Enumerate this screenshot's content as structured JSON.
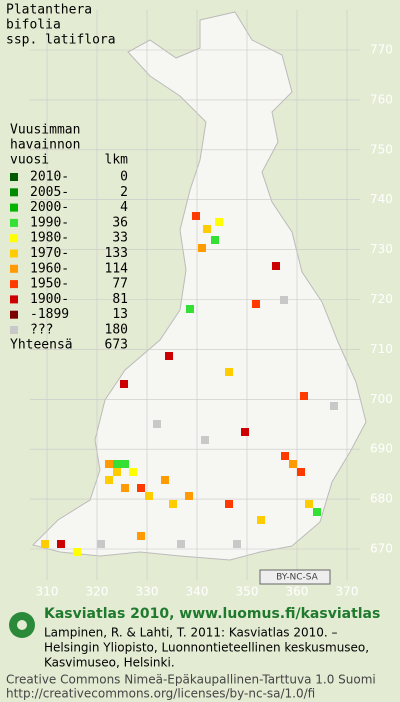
{
  "title": [
    "Platanthera",
    "bifolia",
    "ssp. latiflora"
  ],
  "legend": {
    "heading": [
      "Vuusimman",
      "havainnon",
      "vuosi"
    ],
    "count_heading": "lkm",
    "rows": [
      {
        "label": "2010-",
        "count": 0,
        "color": "#005a00"
      },
      {
        "label": "2005-",
        "count": 2,
        "color": "#008a00"
      },
      {
        "label": "2000-",
        "count": 4,
        "color": "#00b400"
      },
      {
        "label": "1990-",
        "count": 36,
        "color": "#33e033"
      },
      {
        "label": "1980-",
        "count": 33,
        "color": "#ffff00"
      },
      {
        "label": "1970-",
        "count": 133,
        "color": "#ffcc00"
      },
      {
        "label": "1960-",
        "count": 114,
        "color": "#ff9a00"
      },
      {
        "label": "1950-",
        "count": 77,
        "color": "#ff3a00"
      },
      {
        "label": "1900-",
        "count": 81,
        "color": "#cc0000"
      },
      {
        "label": "-1899",
        "count": 13,
        "color": "#7a0000"
      },
      {
        "label": "???",
        "count": 180,
        "color": "#c8c8c8"
      }
    ],
    "total_label": "Yhteensä",
    "total": 673
  },
  "grid": {
    "north": [
      770,
      760,
      750,
      740,
      730,
      720,
      710,
      700,
      690,
      680,
      670
    ],
    "east": [
      310,
      320,
      330,
      340,
      350,
      360,
      370
    ]
  },
  "license_badge": "BY-NC-SA",
  "footer": {
    "brand": "Kasviatlas 2010, www.luomus.fi/kasviatlas",
    "citation": [
      "Lampinen, R. & Lahti, T. 2011: Kasviatlas 2010. –",
      "Helsingin Yliopisto, Luonnontieteellinen keskusmuseo,",
      "Kasvimuseo, Helsinki."
    ],
    "license": [
      "Creative Commons Nimeä-Epäkaupallinen-Tarttuva 1.0 Suomi",
      "http://creativecommons.org/licenses/by-nc-sa/1.0/fi"
    ]
  }
}
